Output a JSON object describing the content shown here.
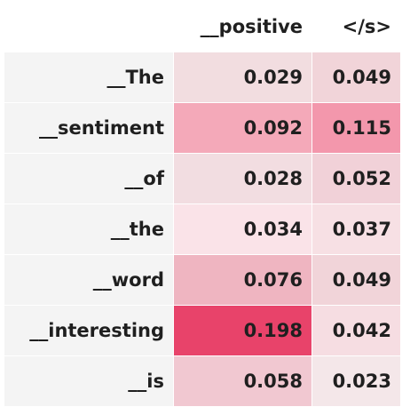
{
  "table": {
    "columns": [
      "__positive",
      "</s>"
    ],
    "rows": [
      {
        "label": "__The",
        "values": [
          0.029,
          0.049
        ],
        "colors": [
          "#f2dde0",
          "#f1d4d9"
        ]
      },
      {
        "label": "__sentiment",
        "values": [
          0.092,
          0.115
        ],
        "colors": [
          "#f4a9b9",
          "#f397ac"
        ]
      },
      {
        "label": "__of",
        "values": [
          0.028,
          0.052
        ],
        "colors": [
          "#f2dde1",
          "#f1d1d8"
        ]
      },
      {
        "label": "__the",
        "values": [
          0.034,
          0.037
        ],
        "colors": [
          "#fae3e8",
          "#f7e0e4"
        ]
      },
      {
        "label": "__word",
        "values": [
          0.076,
          0.049
        ],
        "colors": [
          "#efb5c1",
          "#f1d4d9"
        ]
      },
      {
        "label": "__interesting",
        "values": [
          0.198,
          0.042
        ],
        "colors": [
          "#e8436a",
          "#f6dde2"
        ]
      },
      {
        "label": "__is",
        "values": [
          0.058,
          0.023
        ],
        "colors": [
          "#f1c8d1",
          "#f4e7e9"
        ]
      }
    ]
  }
}
